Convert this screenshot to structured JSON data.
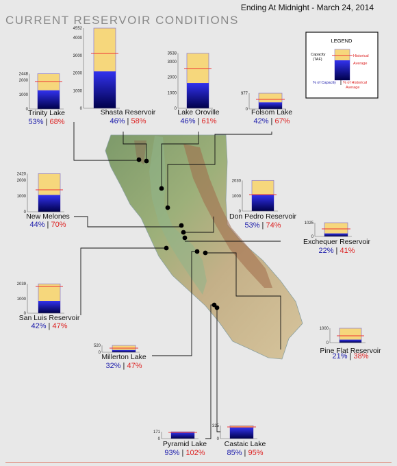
{
  "header": {
    "title": "CURRENT RESERVOIR CONDITIONS",
    "date": "Ending At Midnight - March 24, 2014"
  },
  "legend": {
    "title": "LEGEND",
    "capacity_label_1": "Capacity",
    "capacity_label_2": "(TAF)",
    "historical_label_1": "Historical",
    "historical_label_2": "Average",
    "pct_capacity_label": "% of Capacity",
    "pct_hist_label_1": "% of Historical",
    "pct_hist_label_2": "Average"
  },
  "colors": {
    "capacity_fill": "#f6d77c",
    "storage_top": "#3232ee",
    "storage_bottom": "#00004a",
    "historical_line": "#ee3333",
    "pct_capacity_text": "#1a1aaa",
    "pct_historical_text": "#dd2222"
  },
  "chart_data": {
    "type": "bar",
    "title": "CURRENT RESERVOIR CONDITIONS",
    "subtitle": "Ending At Midnight - March 24, 2014",
    "reservoirs": [
      {
        "name": "Trinity Lake",
        "capacity": 2448,
        "ticks": [
          0,
          1000,
          2000,
          2448
        ],
        "pct_capacity": 53,
        "pct_historical": 68
      },
      {
        "name": "Shasta Reservoir",
        "capacity": 4552,
        "ticks": [
          0,
          1000,
          2000,
          3000,
          4000,
          4552
        ],
        "pct_capacity": 46,
        "pct_historical": 58
      },
      {
        "name": "Lake Oroville",
        "capacity": 3538,
        "ticks": [
          0,
          1000,
          2000,
          3000,
          3538
        ],
        "pct_capacity": 46,
        "pct_historical": 61
      },
      {
        "name": "Folsom Lake",
        "capacity": 977,
        "ticks": [
          0,
          977
        ],
        "pct_capacity": 42,
        "pct_historical": 67
      },
      {
        "name": "New Melones",
        "capacity": 2420,
        "ticks": [
          0,
          1000,
          2000,
          2420
        ],
        "pct_capacity": 44,
        "pct_historical": 70
      },
      {
        "name": "Don Pedro Reservoir",
        "capacity": 2030,
        "ticks": [
          0,
          1000,
          2030
        ],
        "pct_capacity": 53,
        "pct_historical": 74
      },
      {
        "name": "Exchequer Reservoir",
        "capacity": 1025,
        "ticks": [
          0,
          1025
        ],
        "pct_capacity": 22,
        "pct_historical": 41
      },
      {
        "name": "San Luis Reservoir",
        "capacity": 2039,
        "ticks": [
          0,
          1000,
          2039
        ],
        "pct_capacity": 42,
        "pct_historical": 47
      },
      {
        "name": "Millerton Lake",
        "capacity": 520,
        "ticks": [
          0,
          520
        ],
        "pct_capacity": 32,
        "pct_historical": 47
      },
      {
        "name": "Pine Flat Reservoir",
        "capacity": 1000,
        "ticks": [
          0,
          1000
        ],
        "pct_capacity": 21,
        "pct_historical": 38
      },
      {
        "name": "Pyramid Lake",
        "capacity": 171,
        "ticks": [
          0,
          171
        ],
        "pct_capacity": 93,
        "pct_historical": 102
      },
      {
        "name": "Castaic Lake",
        "capacity": 325,
        "ticks": [
          0,
          325
        ],
        "pct_capacity": 85,
        "pct_historical": 95
      }
    ]
  }
}
